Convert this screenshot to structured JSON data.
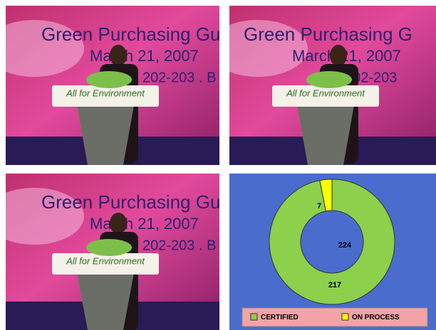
{
  "photos": [
    {
      "headline": "Green Purchasing Gu",
      "date": "March 21, 2007",
      "venue": "202-203 . B",
      "sign": "All for Environment"
    },
    {
      "headline": "Green Purchasing G",
      "date": "March 21, 2007",
      "venue": "202-203",
      "sign": "All for Environment"
    },
    {
      "headline": "Green Purchasing Gu",
      "date": "March 21, 2007",
      "venue": "202-203 . B",
      "sign": "All for Environment"
    }
  ],
  "chart_data": {
    "type": "donut",
    "categories": [
      "CERTIFIED",
      "ON PROCESS"
    ],
    "values": [
      217,
      7
    ],
    "colors": [
      "#8cd04c",
      "#ffff00"
    ],
    "center_label": 224,
    "background": "#4a6ccc",
    "legend_position": "bottom"
  }
}
